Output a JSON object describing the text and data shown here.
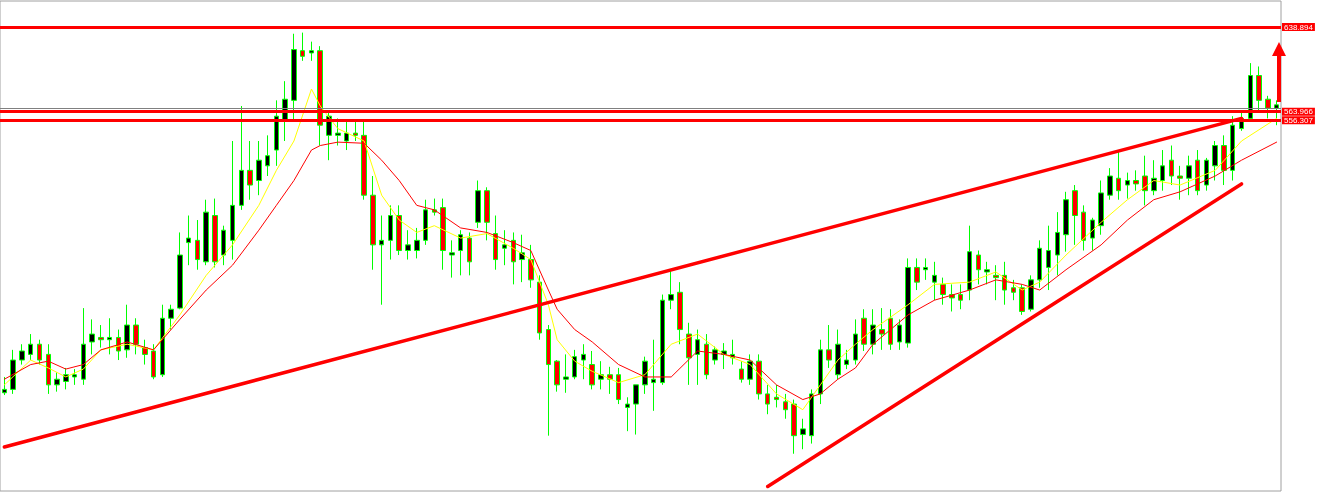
{
  "chart_data": {
    "type": "candlestick",
    "categories": [
      null,
      null,
      null,
      null,
      null,
      null,
      null,
      null,
      null,
      null,
      null,
      null,
      null,
      null,
      null,
      null,
      null,
      null,
      null,
      null,
      null,
      null,
      null,
      null,
      null,
      null,
      null,
      null,
      null,
      null,
      null,
      null,
      null,
      null,
      null,
      null,
      null,
      null,
      null,
      null,
      null,
      null,
      null,
      null,
      null,
      null,
      null,
      null,
      null,
      null,
      null,
      null,
      null,
      null,
      null,
      null,
      null,
      null,
      null,
      null,
      null,
      null,
      null,
      null,
      null,
      null,
      null,
      null,
      null,
      null,
      null,
      null,
      null,
      null,
      null,
      null,
      null,
      null,
      null,
      null,
      null,
      null,
      null,
      null,
      null,
      null,
      null,
      null,
      null,
      null,
      null,
      null,
      null,
      null,
      null,
      null,
      null,
      null,
      null,
      null,
      null,
      null,
      null,
      null,
      null,
      null,
      null,
      null,
      null,
      null,
      null,
      null,
      null,
      null,
      null,
      null,
      null,
      null,
      null,
      null,
      null,
      null,
      null,
      null,
      null,
      null,
      null,
      null,
      null,
      null,
      null,
      null,
      null,
      null,
      null,
      null,
      null,
      null,
      null,
      null,
      null,
      null,
      null,
      null,
      null,
      null
    ],
    "ylim": [
      228,
      662
    ],
    "yticks": [
      556.307,
      563.966,
      638.894
    ],
    "tick_labels": "y",
    "grid": false,
    "series": [
      {
        "color": "#00ff00",
        "ohlc": [
          [
            315,
            329,
            313,
            318
          ],
          [
            318,
            353,
            314,
            344
          ],
          [
            344,
            358,
            340,
            352
          ],
          [
            349,
            367,
            344,
            358
          ],
          [
            358,
            362,
            340,
            344
          ],
          [
            349,
            358,
            314,
            322
          ],
          [
            322,
            333,
            316,
            327
          ],
          [
            325,
            337,
            318,
            331
          ],
          [
            329,
            336,
            322,
            331
          ],
          [
            327,
            390,
            322,
            358
          ],
          [
            360,
            380,
            349,
            367
          ],
          [
            364,
            375,
            355,
            362
          ],
          [
            362,
            381,
            349,
            364
          ],
          [
            364,
            371,
            344,
            352
          ],
          [
            353,
            393,
            346,
            375
          ],
          [
            375,
            381,
            349,
            358
          ],
          [
            355,
            362,
            340,
            349
          ],
          [
            352,
            358,
            327,
            329
          ],
          [
            331,
            393,
            329,
            381
          ],
          [
            381,
            393,
            371,
            389
          ],
          [
            390,
            457,
            389,
            437
          ],
          [
            448,
            472,
            428,
            452
          ],
          [
            450,
            468,
            424,
            433
          ],
          [
            431,
            486,
            428,
            475
          ],
          [
            472,
            487,
            426,
            431
          ],
          [
            437,
            463,
            428,
            459
          ],
          [
            450,
            538,
            433,
            481
          ],
          [
            481,
            569,
            477,
            512
          ],
          [
            512,
            538,
            486,
            499
          ],
          [
            503,
            538,
            490,
            521
          ],
          [
            516,
            543,
            507,
            525
          ],
          [
            530,
            574,
            516,
            560
          ],
          [
            556,
            591,
            538,
            575
          ],
          [
            574,
            633,
            556,
            619
          ],
          [
            618,
            634,
            609,
            613
          ],
          [
            616,
            626,
            609,
            618
          ],
          [
            618,
            622,
            534,
            552
          ],
          [
            543,
            565,
            521,
            560
          ],
          [
            543,
            558,
            534,
            545
          ],
          [
            538,
            556,
            530,
            545
          ],
          [
            545,
            556,
            538,
            543
          ],
          [
            543,
            556,
            486,
            490
          ],
          [
            490,
            507,
            424,
            446
          ],
          [
            446,
            472,
            393,
            450
          ],
          [
            450,
            481,
            433,
            472
          ],
          [
            472,
            481,
            437,
            441
          ],
          [
            441,
            459,
            433,
            446
          ],
          [
            441,
            461,
            434,
            450
          ],
          [
            450,
            486,
            446,
            477
          ],
          [
            477,
            487,
            472,
            475
          ],
          [
            479,
            487,
            424,
            441
          ],
          [
            437,
            450,
            417,
            439
          ],
          [
            441,
            459,
            419,
            455
          ],
          [
            452,
            457,
            419,
            431
          ],
          [
            466,
            503,
            461,
            494
          ],
          [
            494,
            497,
            450,
            466
          ],
          [
            456,
            472,
            424,
            433
          ],
          [
            443,
            459,
            428,
            446
          ],
          [
            450,
            457,
            411,
            431
          ],
          [
            433,
            455,
            413,
            439
          ],
          [
            433,
            446,
            408,
            415
          ],
          [
            413,
            419,
            362,
            368
          ],
          [
            371,
            375,
            277,
            340
          ],
          [
            343,
            344,
            316,
            322
          ],
          [
            327,
            349,
            315,
            329
          ],
          [
            329,
            353,
            327,
            347
          ],
          [
            344,
            358,
            327,
            349
          ],
          [
            340,
            352,
            318,
            322
          ],
          [
            327,
            343,
            318,
            331
          ],
          [
            331,
            338,
            314,
            327
          ],
          [
            331,
            337,
            305,
            309
          ],
          [
            302,
            311,
            281,
            305
          ],
          [
            305,
            322,
            278,
            322
          ],
          [
            322,
            347,
            314,
            343
          ],
          [
            324,
            362,
            299,
            327
          ],
          [
            324,
            402,
            322,
            397
          ],
          [
            397,
            424,
            389,
            402
          ],
          [
            404,
            413,
            358,
            371
          ],
          [
            367,
            377,
            322,
            346
          ],
          [
            349,
            371,
            322,
            362
          ],
          [
            358,
            367,
            327,
            331
          ],
          [
            344,
            356,
            340,
            353
          ],
          [
            349,
            359,
            336,
            352
          ],
          [
            346,
            362,
            340,
            349
          ],
          [
            336,
            343,
            324,
            327
          ],
          [
            327,
            349,
            322,
            343
          ],
          [
            343,
            349,
            309,
            314
          ],
          [
            314,
            322,
            296,
            305
          ],
          [
            311,
            322,
            302,
            309
          ],
          [
            307,
            314,
            292,
            300
          ],
          [
            305,
            309,
            261,
            277
          ],
          [
            278,
            292,
            265,
            283
          ],
          [
            277,
            318,
            270,
            314
          ],
          [
            314,
            362,
            305,
            353
          ],
          [
            353,
            375,
            337,
            344
          ],
          [
            331,
            371,
            327,
            358
          ],
          [
            340,
            353,
            336,
            344
          ],
          [
            344,
            380,
            340,
            367
          ],
          [
            381,
            389,
            352,
            358
          ],
          [
            358,
            389,
            349,
            375
          ],
          [
            371,
            390,
            353,
            367
          ],
          [
            381,
            389,
            353,
            358
          ],
          [
            360,
            380,
            353,
            375
          ],
          [
            359,
            434,
            355,
            426
          ],
          [
            426,
            434,
            406,
            413
          ],
          [
            424,
            434,
            415,
            426
          ],
          [
            413,
            431,
            397,
            419
          ],
          [
            411,
            417,
            393,
            402
          ],
          [
            402,
            411,
            387,
            399
          ],
          [
            402,
            411,
            389,
            397
          ],
          [
            406,
            463,
            397,
            440
          ],
          [
            437,
            441,
            411,
            424
          ],
          [
            422,
            431,
            411,
            424
          ],
          [
            419,
            428,
            397,
            417
          ],
          [
            419,
            431,
            393,
            406
          ],
          [
            408,
            415,
            397,
            404
          ],
          [
            408,
            411,
            384,
            387
          ],
          [
            389,
            419,
            387,
            415
          ],
          [
            415,
            450,
            408,
            443
          ],
          [
            426,
            463,
            406,
            441
          ],
          [
            437,
            475,
            419,
            457
          ],
          [
            455,
            493,
            440,
            486
          ],
          [
            494,
            499,
            446,
            472
          ],
          [
            475,
            481,
            441,
            450
          ],
          [
            452,
            470,
            441,
            468
          ],
          [
            463,
            503,
            455,
            492
          ],
          [
            490,
            514,
            486,
            507
          ],
          [
            505,
            530,
            486,
            494
          ],
          [
            499,
            510,
            487,
            503
          ],
          [
            503,
            512,
            494,
            500
          ],
          [
            507,
            525,
            481,
            494
          ],
          [
            494,
            521,
            490,
            505
          ],
          [
            503,
            530,
            494,
            516
          ],
          [
            521,
            534,
            499,
            507
          ],
          [
            507,
            516,
            486,
            505
          ],
          [
            505,
            525,
            490,
            516
          ],
          [
            521,
            530,
            490,
            494
          ],
          [
            499,
            523,
            494,
            521
          ],
          [
            516,
            538,
            503,
            534
          ],
          [
            534,
            543,
            499,
            512
          ],
          [
            512,
            560,
            503,
            552
          ],
          [
            549,
            563,
            547,
            558
          ],
          [
            558,
            607,
            556,
            596
          ],
          [
            596,
            604,
            565,
            574
          ],
          [
            575,
            578,
            558,
            567
          ],
          [
            567,
            574,
            552,
            570
          ]
        ],
        "colors": [
          "#000000",
          "#000000",
          "#000000",
          "#000000",
          "#ff0000",
          "#ff0000",
          "#000000",
          "#000000",
          "#000000",
          "#000000",
          "#000000",
          "#ff0000",
          "#000000",
          "#ff0000",
          "#000000",
          "#ff0000",
          "#ff0000",
          "#ff0000",
          "#000000",
          "#000000",
          "#000000",
          "#000000",
          "#ff0000",
          "#000000",
          "#ff0000",
          "#000000",
          "#000000",
          "#000000",
          "#ff0000",
          "#000000",
          "#000000",
          "#000000",
          "#000000",
          "#000000",
          "#ff0000",
          "#000000",
          "#ff0000",
          "#000000",
          "#000000",
          "#000000",
          "#ff0000",
          "#ff0000",
          "#ff0000",
          "#000000",
          "#000000",
          "#ff0000",
          "#000000",
          "#000000",
          "#000000",
          "#ff0000",
          "#ff0000",
          "#000000",
          "#000000",
          "#ff0000",
          "#000000",
          "#ff0000",
          "#ff0000",
          "#000000",
          "#ff0000",
          "#000000",
          "#ff0000",
          "#ff0000",
          "#ff0000",
          "#ff0000",
          "#000000",
          "#000000",
          "#000000",
          "#ff0000",
          "#000000",
          "#ff0000",
          "#ff0000",
          "#000000",
          "#000000",
          "#000000",
          "#000000",
          "#000000",
          "#000000",
          "#ff0000",
          "#ff0000",
          "#000000",
          "#ff0000",
          "#000000",
          "#000000",
          "#000000",
          "#ff0000",
          "#000000",
          "#ff0000",
          "#ff0000",
          "#ff0000",
          "#ff0000",
          "#ff0000",
          "#000000",
          "#000000",
          "#000000",
          "#ff0000",
          "#000000",
          "#000000",
          "#000000",
          "#ff0000",
          "#000000",
          "#ff0000",
          "#ff0000",
          "#000000",
          "#000000",
          "#ff0000",
          "#000000",
          "#000000",
          "#ff0000",
          "#ff0000",
          "#ff0000",
          "#000000",
          "#ff0000",
          "#000000",
          "#ff0000",
          "#ff0000",
          "#ff0000",
          "#ff0000",
          "#000000",
          "#000000",
          "#000000",
          "#000000",
          "#000000",
          "#ff0000",
          "#ff0000",
          "#000000",
          "#000000",
          "#000000",
          "#ff0000",
          "#000000",
          "#ff0000",
          "#ff0000",
          "#000000",
          "#000000",
          "#ff0000",
          "#ff0000",
          "#000000",
          "#ff0000",
          "#000000",
          "#000000",
          "#ff0000",
          "#000000",
          "#000000",
          "#000000",
          "#ff0000",
          "#ff0000",
          "#000000"
        ]
      },
      {
        "type": "line",
        "color": "#ffff00",
        "values": [
          322,
          null,
          null,
          344,
          null,
          337,
          null,
          329,
          null,
          336,
          null,
          353,
          null,
          null,
          358,
          null,
          null,
          353,
          null,
          null,
          384,
          null,
          null,
          419,
          null,
          null,
          446,
          null,
          null,
          481,
          null,
          512,
          null,
          538,
          null,
          584,
          569,
          null,
          549,
          null,
          null,
          538,
          null,
          490,
          null,
          468,
          null,
          457,
          null,
          463,
          null,
          null,
          452,
          null,
          null,
          456,
          null,
          null,
          443,
          null,
          433,
          null,
          393,
          362,
          null,
          343,
          null,
          334,
          null,
          null,
          324,
          null,
          null,
          331,
          null,
          null,
          358,
          null,
          null,
          367,
          null,
          null,
          349,
          null,
          null,
          340,
          null,
          null,
          314,
          null,
          null,
          300,
          null,
          322,
          null,
          344,
          null,
          358,
          null,
          371,
          null,
          null,
          null,
          393,
          null,
          null,
          411,
          null,
          null,
          null,
          413,
          null,
          null,
          422,
          null,
          null,
          406,
          null,
          413,
          null,
          null,
          437,
          null,
          null,
          null,
          466,
          null,
          null,
          486,
          null,
          null,
          503,
          null,
          null,
          499,
          null,
          null,
          null,
          512,
          null,
          null,
          538,
          null,
          null,
          null,
          558
        ]
      },
      {
        "type": "line",
        "color": "#ff0000",
        "values": [
          327,
          null,
          null,
          340,
          null,
          343,
          null,
          336,
          null,
          340,
          null,
          353,
          null,
          null,
          360,
          null,
          null,
          353,
          null,
          null,
          380,
          null,
          null,
          406,
          null,
          null,
          428,
          null,
          null,
          459,
          null,
          481,
          null,
          503,
          null,
          530,
          534,
          null,
          537,
          null,
          null,
          536,
          null,
          521,
          null,
          503,
          null,
          481,
          null,
          477,
          null,
          null,
          461,
          null,
          null,
          457,
          null,
          null,
          448,
          null,
          441,
          null,
          406,
          389,
          null,
          371,
          null,
          360,
          null,
          null,
          340,
          null,
          null,
          329,
          null,
          null,
          329,
          null,
          null,
          352,
          null,
          null,
          349,
          null,
          null,
          344,
          null,
          null,
          322,
          null,
          null,
          309,
          null,
          314,
          null,
          327,
          null,
          337,
          null,
          358,
          null,
          null,
          null,
          384,
          null,
          null,
          397,
          null,
          null,
          null,
          406,
          null,
          null,
          415,
          null,
          null,
          411,
          null,
          406,
          null,
          null,
          424,
          null,
          null,
          null,
          446,
          null,
          null,
          468,
          null,
          null,
          486,
          null,
          null,
          493,
          null,
          null,
          null,
          507,
          null,
          null,
          521,
          null,
          null,
          null,
          537
        ]
      },
      {
        "type": "line",
        "color": "#ff0000",
        "values": [
          267,
          null,
          null,
          null,
          null,
          null,
          null,
          null,
          null,
          null,
          null,
          null,
          null,
          null,
          null,
          null,
          null,
          null,
          null,
          null,
          null,
          null,
          null,
          null,
          null,
          null,
          null,
          null,
          null,
          null,
          null,
          null,
          null,
          null,
          null,
          null,
          null,
          null,
          null,
          null,
          null,
          null,
          null,
          null,
          null,
          null,
          null,
          null,
          null,
          null,
          null,
          null,
          null,
          null,
          null,
          null,
          null,
          null,
          null,
          null,
          null,
          null,
          null,
          null,
          null,
          null,
          null,
          null,
          null,
          null,
          null,
          null,
          null,
          null,
          null,
          null,
          null,
          null,
          null,
          null,
          null,
          null,
          null,
          null,
          null,
          null,
          null,
          null,
          null,
          null,
          null,
          null,
          null,
          null,
          null,
          null,
          null,
          null,
          null,
          null,
          null,
          null,
          null,
          null,
          null,
          null,
          null,
          null,
          null,
          null,
          null,
          null,
          null,
          null,
          null,
          null,
          null,
          null,
          null,
          null,
          null,
          null,
          null,
          null,
          null,
          null,
          null,
          null,
          null,
          null,
          null,
          null,
          null,
          null,
          null,
          null,
          null,
          null,
          null,
          null,
          null,
          558,
          null,
          null,
          null,
          null
        ]
      },
      {
        "type": "line",
        "color": "#ff0000",
        "values": [
          null,
          null,
          null,
          null,
          null,
          null,
          null,
          null,
          null,
          null,
          null,
          null,
          null,
          null,
          null,
          null,
          null,
          null,
          null,
          null,
          null,
          null,
          null,
          null,
          null,
          null,
          null,
          null,
          null,
          null,
          null,
          null,
          null,
          null,
          null,
          null,
          null,
          null,
          null,
          null,
          null,
          null,
          null,
          null,
          null,
          null,
          null,
          null,
          null,
          null,
          null,
          null,
          null,
          null,
          null,
          null,
          null,
          null,
          null,
          null,
          null,
          null,
          null,
          null,
          null,
          null,
          null,
          null,
          null,
          null,
          null,
          null,
          null,
          null,
          null,
          null,
          null,
          null,
          null,
          null,
          null,
          null,
          null,
          null,
          null,
          null,
          null,
          232,
          null,
          null,
          null,
          null,
          null,
          null,
          null,
          null,
          null,
          null,
          null,
          null,
          null,
          null,
          null,
          null,
          null,
          null,
          null,
          null,
          null,
          null,
          null,
          null,
          null,
          null,
          null,
          null,
          null,
          null,
          null,
          null,
          null,
          null,
          null,
          null,
          null,
          null,
          null,
          null,
          null,
          null,
          null,
          null,
          null,
          null,
          null,
          null,
          null,
          null,
          null,
          null,
          null,
          500,
          null,
          null,
          null,
          null
        ]
      }
    ],
    "ref_lines": [
      {
        "axis": "y",
        "value": 638.894,
        "color": "#ff0000"
      },
      {
        "axis": "y",
        "value": 567,
        "color": "#808080"
      },
      {
        "axis": "y",
        "value": 563.966,
        "color": "#ff0000"
      },
      {
        "axis": "y",
        "value": 556.307,
        "color": "#ff0000"
      }
    ]
  }
}
